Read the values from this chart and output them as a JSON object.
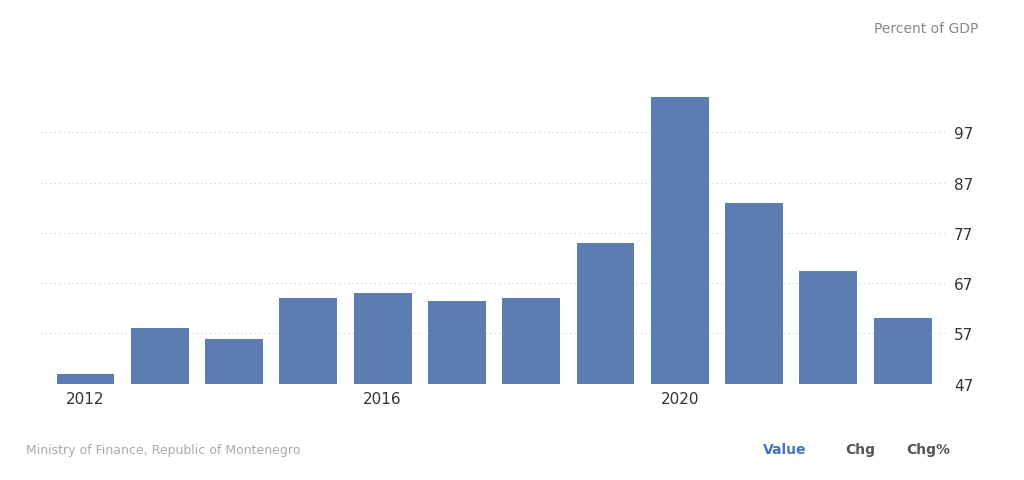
{
  "years": [
    2012,
    2013,
    2014,
    2015,
    2016,
    2017,
    2018,
    2019,
    2020,
    2021,
    2022,
    2023
  ],
  "values": [
    49.0,
    58.0,
    56.0,
    64.0,
    65.0,
    63.5,
    64.0,
    75.0,
    104.0,
    83.0,
    69.5,
    60.0
  ],
  "bar_color": "#5b7db1",
  "background_color": "#ffffff",
  "grid_color": "#cccccc",
  "yticks": [
    47,
    57,
    67,
    77,
    87,
    97
  ],
  "xtick_labels": [
    "2012",
    "",
    "",
    "",
    "2016",
    "",
    "",
    "",
    "2020",
    "",
    "",
    ""
  ],
  "ylabel_text": "Percent of GDP",
  "source_text": "Ministry of Finance, Republic of Montenegro",
  "footer_value_label": "Value",
  "footer_chg_label": "Chg",
  "footer_chgpct_label": "Chg%",
  "ylim": [
    47,
    112
  ],
  "ylabel_color": "#888888",
  "ylabel_fontsize": 10,
  "source_fontsize": 9,
  "tick_fontsize": 11,
  "bar_width": 0.78,
  "footer_value_color": "#4472c4",
  "footer_label_color": "#555555"
}
